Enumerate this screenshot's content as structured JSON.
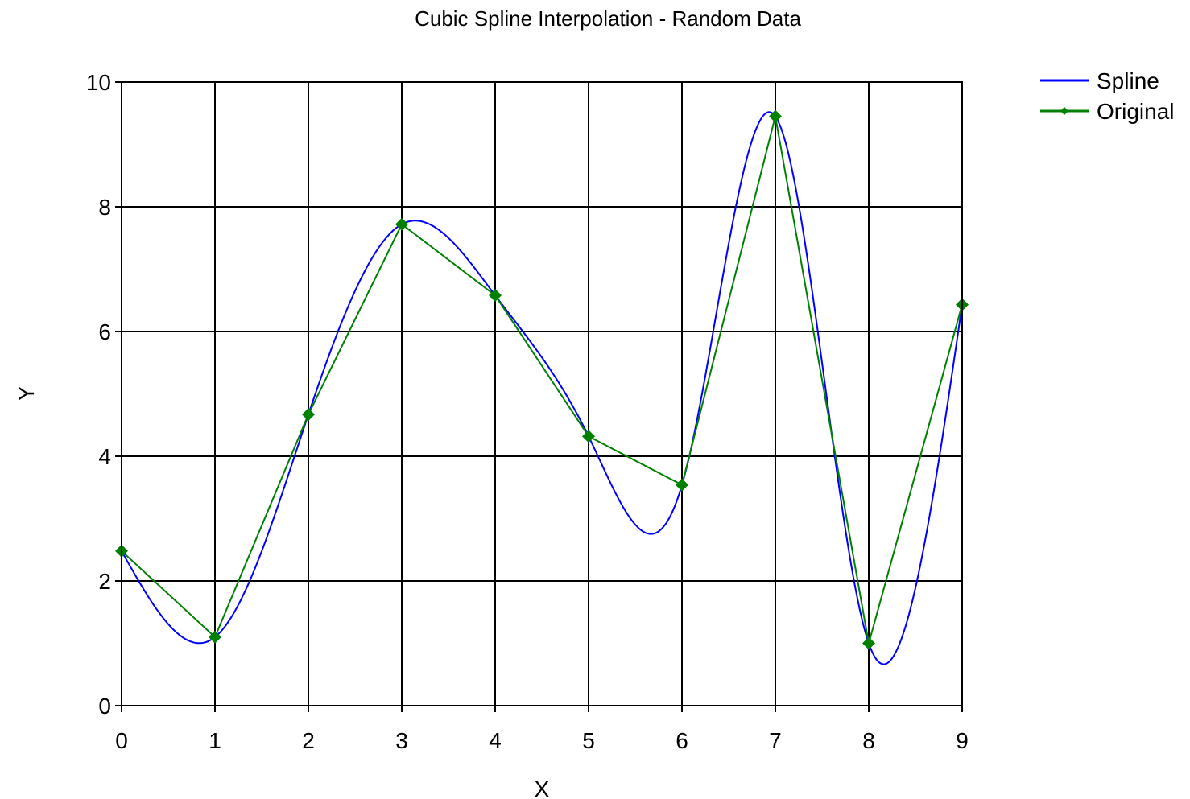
{
  "chart_data": {
    "type": "line",
    "title": "Cubic Spline Interpolation - Random Data",
    "xlabel": "X",
    "ylabel": "Y",
    "xlim": [
      0,
      9
    ],
    "ylim": [
      0,
      10
    ],
    "x_ticks": [
      0,
      1,
      2,
      3,
      4,
      5,
      6,
      7,
      8,
      9
    ],
    "y_ticks": [
      0,
      2,
      4,
      6,
      8,
      10
    ],
    "grid": true,
    "legend_position": "top-right",
    "series": [
      {
        "name": "Spline",
        "color": "#0000ff",
        "style": "cubic-spline",
        "x": [
          0,
          1,
          2,
          3,
          4,
          5,
          6,
          7,
          8,
          9
        ],
        "y": [
          2.48,
          1.1,
          4.67,
          7.72,
          6.58,
          4.32,
          3.54,
          9.45,
          1.0,
          6.43
        ]
      },
      {
        "name": "Original",
        "color": "#008000",
        "style": "line-with-markers",
        "marker": "diamond",
        "x": [
          0,
          1,
          2,
          3,
          4,
          5,
          6,
          7,
          8,
          9
        ],
        "y": [
          2.48,
          1.1,
          4.67,
          7.72,
          6.58,
          4.32,
          3.54,
          9.45,
          1.0,
          6.43
        ]
      }
    ]
  }
}
